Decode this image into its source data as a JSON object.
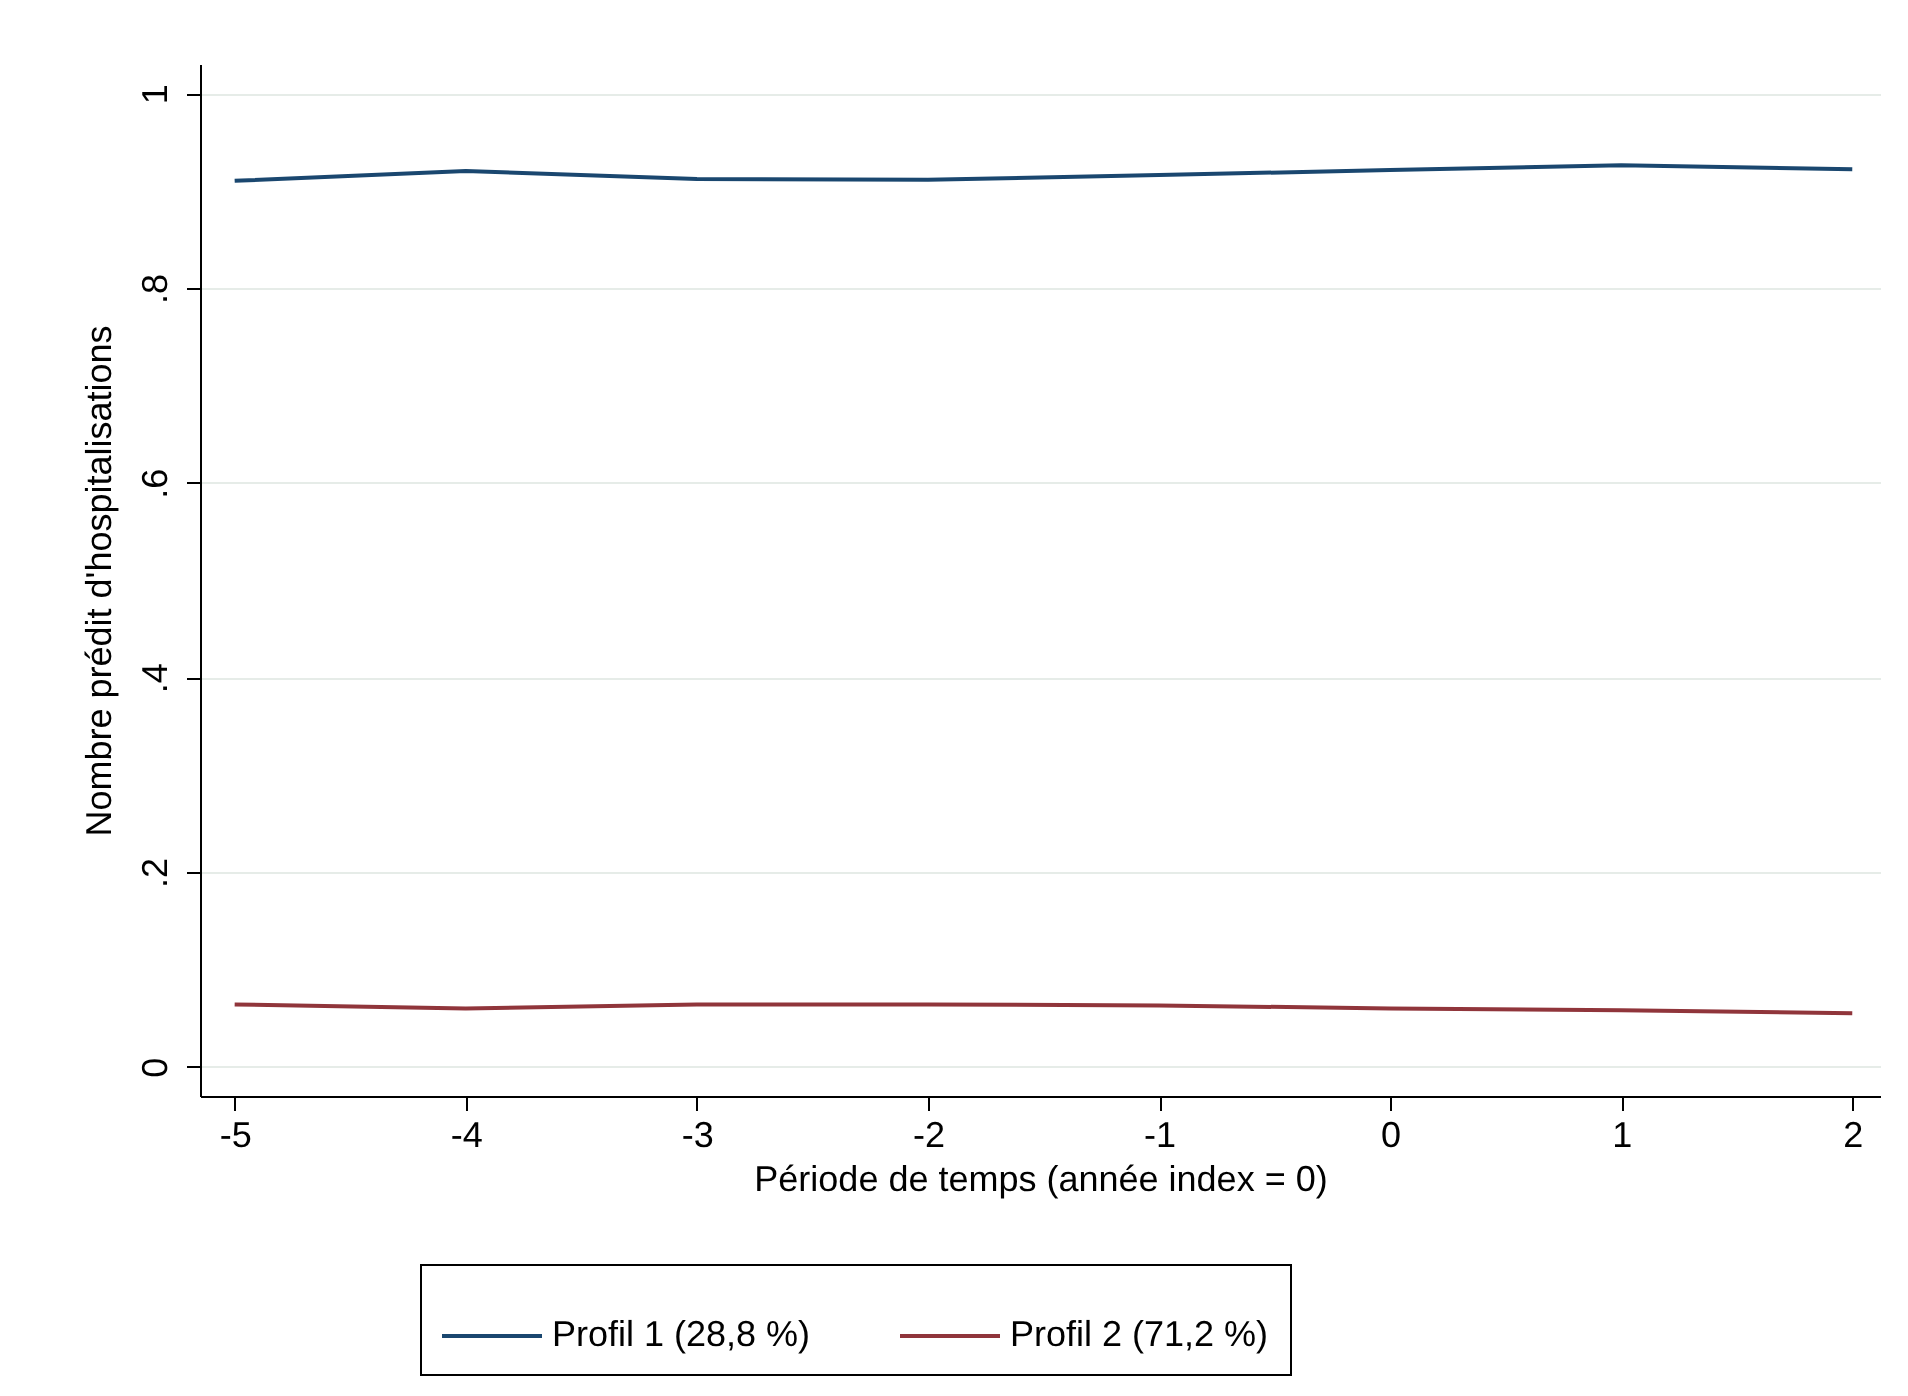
{
  "chart_data": {
    "type": "line",
    "xlabel": "Période de temps (année index = 0)",
    "ylabel": "Nombre prédit d'hospitalisations",
    "x": [
      -5,
      -4,
      -3,
      -2,
      -1,
      0,
      1,
      2
    ],
    "series": [
      {
        "name": "Profil 1 (28,8 %)",
        "color": "#1a476f",
        "values": [
          0.91,
          0.92,
          0.912,
          0.911,
          0.916,
          0.921,
          0.926,
          0.922
        ]
      },
      {
        "name": "Profil 2 (71,2 %)",
        "color": "#90353b",
        "values": [
          0.064,
          0.06,
          0.064,
          0.064,
          0.063,
          0.06,
          0.058,
          0.055
        ]
      }
    ],
    "xlim": [
      -5.15,
      2.12
    ],
    "ylim": [
      -0.03,
      1.03
    ],
    "xticks": [
      -5,
      -4,
      -3,
      -2,
      -1,
      0,
      1,
      2
    ],
    "yticks": [
      {
        "value": 0,
        "label": "0"
      },
      {
        "value": 0.2,
        "label": ".2"
      },
      {
        "value": 0.4,
        "label": ".4"
      },
      {
        "value": 0.6,
        "label": ".6"
      },
      {
        "value": 0.8,
        "label": ".8"
      },
      {
        "value": 1,
        "label": "1"
      }
    ],
    "grid": "y",
    "legend": "bottom",
    "line_style": "solid",
    "marker": "none"
  }
}
